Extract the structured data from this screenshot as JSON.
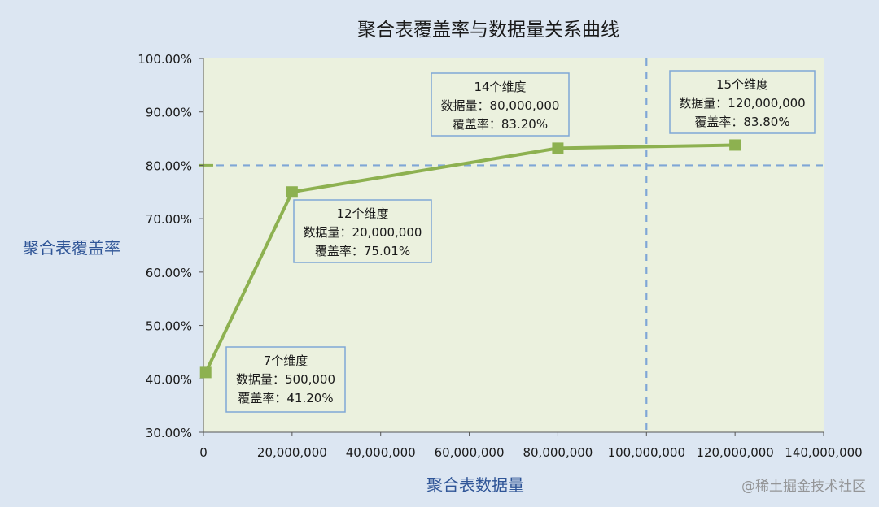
{
  "chart_data": {
    "type": "line",
    "title": "聚合表覆盖率与数据量关系曲线",
    "xlabel": "聚合表数据量",
    "ylabel": "聚合表覆盖率",
    "xlim": [
      0,
      140000000
    ],
    "ylim": [
      0.3,
      1.0
    ],
    "x_ticks": [
      "0",
      "20,000,000",
      "40,000,000",
      "60,000,000",
      "80,000,000",
      "100,000,000",
      "120,000,000",
      "140,000,000"
    ],
    "y_ticks": [
      "30.00%",
      "40.00%",
      "50.00%",
      "60.00%",
      "70.00%",
      "80.00%",
      "90.00%",
      "100.00%"
    ],
    "x_tick_values": [
      0,
      20000000,
      40000000,
      60000000,
      80000000,
      100000000,
      120000000,
      140000000
    ],
    "y_tick_values": [
      0.3,
      0.4,
      0.5,
      0.6,
      0.7,
      0.8,
      0.9,
      1.0
    ],
    "grid": false,
    "series": [
      {
        "x": [
          500000,
          20000000,
          80000000,
          120000000
        ],
        "y": [
          0.412,
          0.7501,
          0.832,
          0.838
        ],
        "color": "#8db150"
      }
    ],
    "reference_lines": [
      {
        "orientation": "horizontal",
        "value": 0.8,
        "color": "#7fa7d6"
      },
      {
        "orientation": "vertical",
        "value": 100000000,
        "color": "#7fa7d6"
      }
    ],
    "annotations": [
      {
        "x": 500000,
        "lines": [
          "7个维度",
          "数据量：500,000",
          "覆盖率：41.20%"
        ]
      },
      {
        "x": 20000000,
        "lines": [
          "12个维度",
          "数据量：20,000,000",
          "覆盖率：75.01%"
        ]
      },
      {
        "x": 80000000,
        "lines": [
          "14个维度",
          "数据量：80,000,000",
          "覆盖率：83.20%"
        ]
      },
      {
        "x": 120000000,
        "lines": [
          "15个维度",
          "数据量：120,000,000",
          "覆盖率：83.80%"
        ]
      }
    ],
    "colors": {
      "background": "#dce6f2",
      "plot_background": "#ebf1de",
      "title": "#1a1a1a",
      "axis_label": "#2f5597",
      "annotation_border": "#7fa7d6"
    }
  },
  "watermark": "@稀土掘金技术社区"
}
